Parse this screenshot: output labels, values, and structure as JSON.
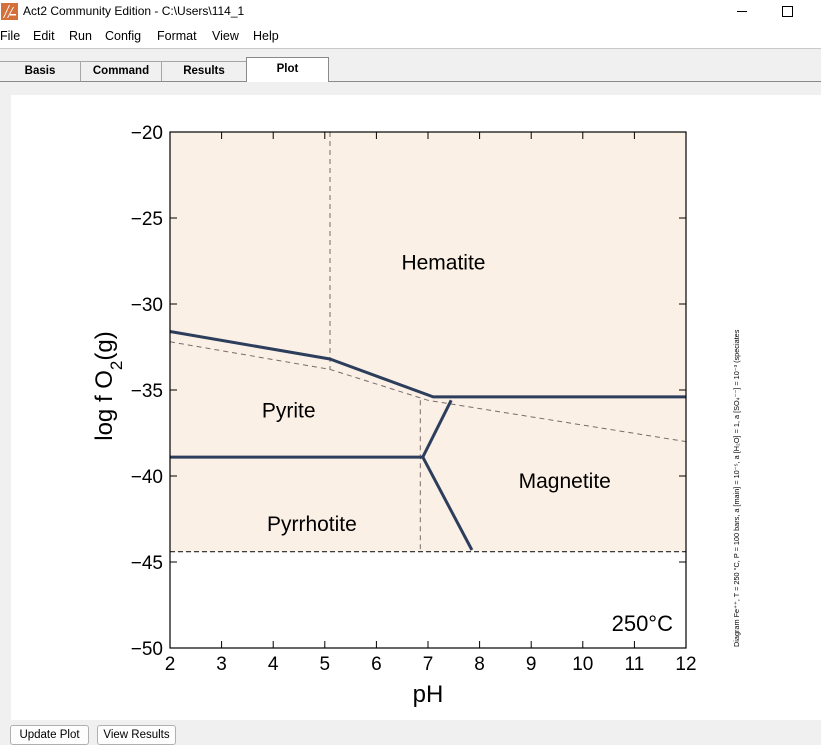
{
  "window": {
    "title": "Act2 Community Edition - C:\\Users\\114_1",
    "icon": "act2-app-icon"
  },
  "menu": [
    "File",
    "Edit",
    "Run",
    "Config",
    "Format",
    "View",
    "Help"
  ],
  "tabs": [
    {
      "label": "Basis",
      "active": false
    },
    {
      "label": "Command",
      "active": false
    },
    {
      "label": "Results",
      "active": false
    },
    {
      "label": "Plot",
      "active": true
    }
  ],
  "bottom_buttons": [
    "Update Plot",
    "View Results"
  ],
  "chart_data": {
    "type": "phase-diagram",
    "title": "",
    "xlabel": "pH",
    "ylabel": "log f O2(g)",
    "xlim": [
      2,
      12
    ],
    "ylim": [
      -50,
      -20
    ],
    "xticks": [
      "2",
      "3",
      "4",
      "5",
      "6",
      "7",
      "8",
      "9",
      "10",
      "11",
      "12"
    ],
    "yticks": [
      "−50",
      "−45",
      "−40",
      "−35",
      "−30",
      "−25",
      "−20"
    ],
    "temperature_label": "250°C",
    "side_note": "Diagram Fe⁺⁺, T = 250 °C, P = 100 bars, a [main] = 10⁻⁵, a [H₂O] = 1, a [SO₄⁻⁻] = 10⁻³ (speciates",
    "colors": {
      "field": "#fbf0e6",
      "boundary": "#2c3e5c",
      "dashed": "#7a6a6a",
      "water_limit": "#222222"
    },
    "stability_floor_y": -44.4,
    "fields": [
      {
        "name": "Hematite",
        "x": 7.3,
        "y": -28.0
      },
      {
        "name": "Pyrite",
        "x": 4.3,
        "y": -36.6
      },
      {
        "name": "Magnetite",
        "x": 9.65,
        "y": -40.7
      },
      {
        "name": "Pyrrhotite",
        "x": 4.75,
        "y": -43.2
      }
    ],
    "boundaries": [
      {
        "name": "hematite-pyrite",
        "points": [
          [
            2,
            -31.6
          ],
          [
            5.1,
            -33.2
          ],
          [
            7.1,
            -35.4
          ],
          [
            12,
            -35.4
          ]
        ]
      },
      {
        "name": "pyrite-pyrrhotite",
        "points": [
          [
            2,
            -38.9
          ],
          [
            6.9,
            -38.9
          ]
        ]
      },
      {
        "name": "pyrite-magnetite",
        "points": [
          [
            6.9,
            -38.9
          ],
          [
            7.45,
            -35.6
          ]
        ]
      },
      {
        "name": "pyrrhotite-magnetite",
        "points": [
          [
            6.9,
            -38.9
          ],
          [
            7.85,
            -44.3
          ]
        ]
      }
    ],
    "dashed_lines": [
      {
        "name": "sulfur-predominance-boundary",
        "points": [
          [
            5.1,
            -20
          ],
          [
            5.1,
            -33.8
          ]
        ]
      },
      {
        "name": "sulfur-predominance-boundary",
        "points": [
          [
            6.85,
            -35.6
          ],
          [
            6.85,
            -44.4
          ]
        ]
      },
      {
        "name": "sulfur-predominance-boundary",
        "points": [
          [
            2,
            -32.2
          ],
          [
            5.1,
            -33.8
          ],
          [
            7.0,
            -35.6
          ],
          [
            12,
            -38.0
          ]
        ]
      },
      {
        "name": "water-stability-limit",
        "points": [
          [
            2,
            -44.4
          ],
          [
            12,
            -44.4
          ]
        ]
      }
    ]
  }
}
